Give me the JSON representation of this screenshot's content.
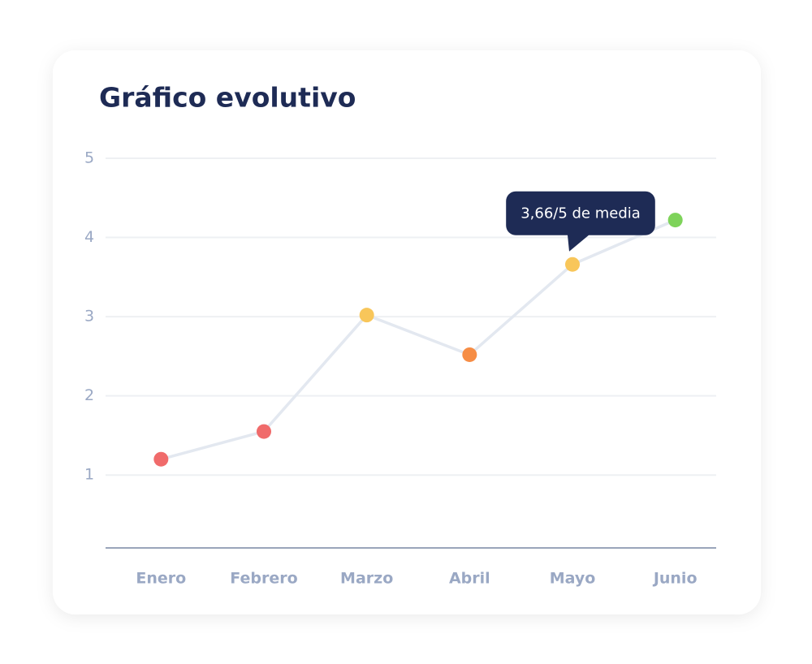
{
  "chart_data": {
    "type": "line",
    "title": "Gráfico evolutivo",
    "categories": [
      "Enero",
      "Febrero",
      "Marzo",
      "Abril",
      "Mayo",
      "Junio"
    ],
    "values": [
      1.2,
      1.55,
      3.02,
      2.52,
      3.66,
      4.22
    ],
    "value_labels": [
      null,
      null,
      null,
      null,
      "3,66/5 de media",
      null
    ],
    "point_colors": [
      "#f06b6b",
      "#f06b6b",
      "#f8c65a",
      "#f68d45",
      "#f8c65a",
      "#7ed35a"
    ],
    "line_color": "#e3e8f0",
    "ylim": [
      0.08,
      5
    ],
    "yticks": [
      1,
      2,
      3,
      4,
      5
    ],
    "grid": true
  }
}
